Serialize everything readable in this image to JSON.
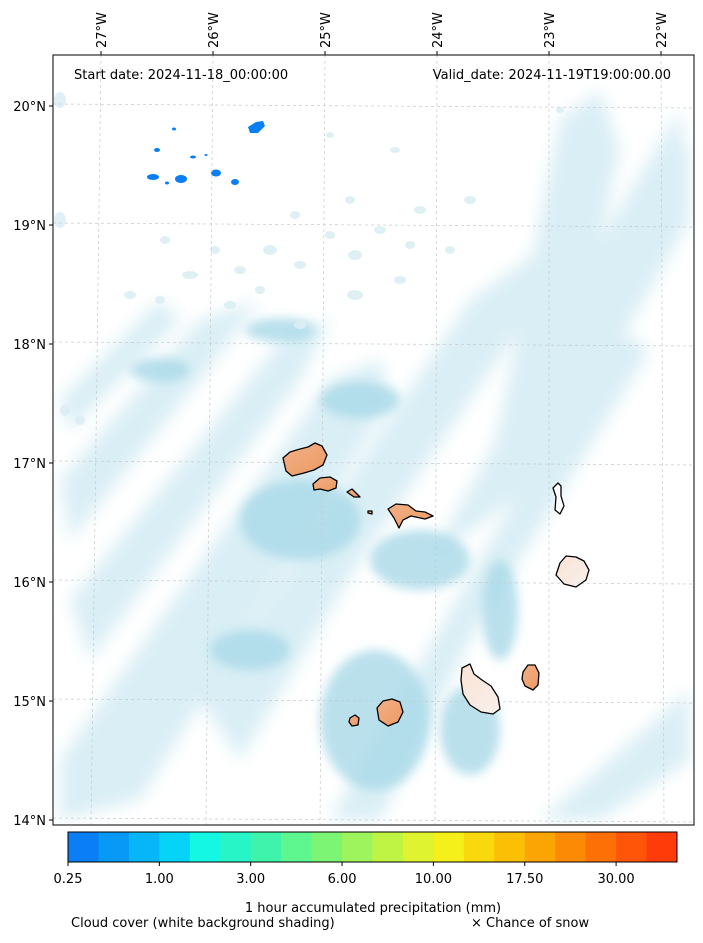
{
  "header": {
    "start_date": "Start date: 2024-11-18_00:00:00",
    "valid_date": "Valid_date: 2024-11-19T19:00:00.00"
  },
  "longitude_labels": [
    "27°W",
    "26°W",
    "25°W",
    "24°W",
    "23°W",
    "22°W"
  ],
  "latitude_labels": [
    "20°N",
    "19°N",
    "18°N",
    "17°N",
    "16°N",
    "15°N",
    "14°N"
  ],
  "colorbar": {
    "title": "1 hour accumulated precipitation (mm)",
    "tick_labels": [
      "0.25",
      "1.00",
      "3.00",
      "6.00",
      "10.00",
      "17.50",
      "30.00"
    ],
    "colors": [
      "#0a7ef5",
      "#0899f6",
      "#06b6f8",
      "#05d3f8",
      "#14f7e2",
      "#28f5c7",
      "#3ff3ad",
      "#5ef68f",
      "#7cf574",
      "#9ef45c",
      "#bff445",
      "#dff330",
      "#f5ef1a",
      "#f9d80e",
      "#fbbf06",
      "#fba504",
      "#fc8a05",
      "#fd7006",
      "#fe5508",
      "#ff3b0a"
    ]
  },
  "footer": {
    "cloud_cover_label": "Cloud cover (white background shading)",
    "snow_label": "× Chance of snow"
  },
  "colors": {
    "ocean_cloud": "#bfe3ee",
    "island_fill": "#f0a878",
    "island_outline": "#000000",
    "gridline": "#c8c8c8",
    "precip_blue": "#0a7ef5"
  }
}
